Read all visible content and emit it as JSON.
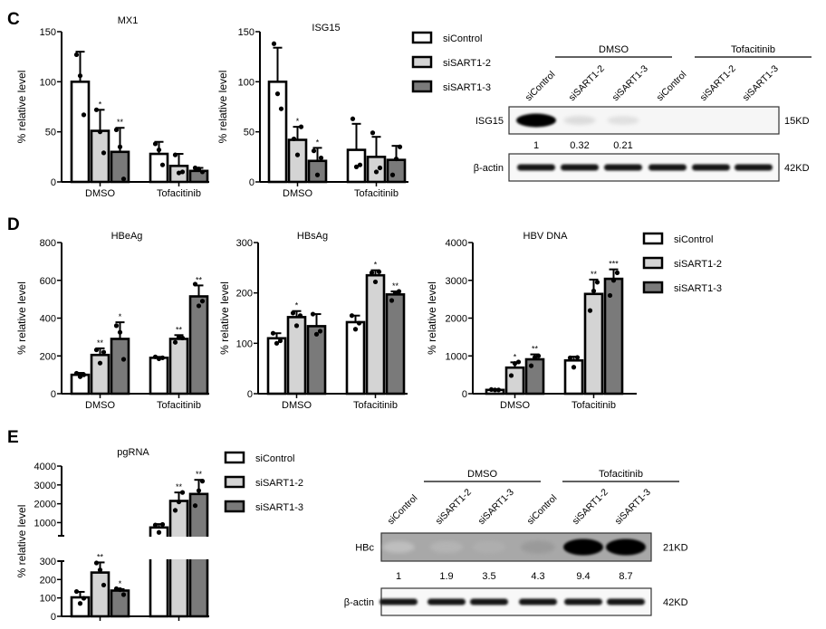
{
  "panels": {
    "C": "C",
    "D": "D",
    "E": "E"
  },
  "colors": {
    "siControl": "#ffffff",
    "siSART1-2": "#d4d4d4",
    "siSART1-3": "#7a7a7a",
    "stroke": "#000000"
  },
  "legend": [
    "siControl",
    "siSART1-2",
    "siSART1-3"
  ],
  "blots": [
    {
      "panel": "C",
      "groups": [
        "DMSO",
        "Tofacitinib"
      ],
      "lanes": [
        "siControl",
        "siSART1-2",
        "siSART1-3",
        "siControl",
        "siSART1-2",
        "siSART1-3"
      ],
      "target": {
        "label": "ISG15",
        "size": "15KD",
        "intensity": [
          1.0,
          0.12,
          0.1,
          0.0,
          0.0,
          0.0
        ]
      },
      "quant": [
        "1",
        "0.32",
        "0.21",
        "",
        "",
        ""
      ],
      "loading": {
        "label": "β-actin",
        "size": "42KD"
      }
    },
    {
      "panel": "E",
      "groups": [
        "DMSO",
        "Tofacitinib"
      ],
      "lanes": [
        "siControl",
        "siSART1-2",
        "siSART1-3",
        "siControl",
        "siSART1-2",
        "siSART1-3"
      ],
      "target": {
        "label": "HBc",
        "size": "21KD",
        "intensity": [
          0.15,
          0.22,
          0.25,
          0.35,
          1.0,
          1.0
        ]
      },
      "quant": [
        "1",
        "1.9",
        "3.5",
        "4.3",
        "9.4",
        "8.7"
      ],
      "loading": {
        "label": "β-actin",
        "size": "42KD"
      }
    }
  ],
  "chart_data": [
    {
      "type": "bar",
      "panel": "C",
      "title": "MX1",
      "ylabel": "% relative level",
      "categories": [
        "DMSO",
        "Tofacitinib"
      ],
      "ylim": [
        0,
        150
      ],
      "yticks": [
        "0",
        "50",
        "100",
        "150"
      ],
      "series": [
        {
          "name": "siControl",
          "values": [
            100,
            28
          ],
          "err": [
            30,
            12
          ],
          "points": [
            [
              127,
              106,
              67
            ],
            [
              38,
              32,
              17
            ]
          ],
          "sig": [
            "",
            ""
          ]
        },
        {
          "name": "siSART1-2",
          "values": [
            51,
            16
          ],
          "err": [
            21,
            12
          ],
          "points": [
            [
              72,
              50,
              29
            ],
            [
              27,
              9,
              10
            ]
          ],
          "sig": [
            "*",
            ""
          ]
        },
        {
          "name": "siSART1-3",
          "values": [
            30,
            11
          ],
          "err": [
            24,
            3
          ],
          "points": [
            [
              52,
              35,
              3
            ],
            [
              14,
              13,
              10
            ]
          ],
          "sig": [
            "**",
            ""
          ]
        }
      ]
    },
    {
      "type": "bar",
      "panel": "C",
      "title": "ISG15",
      "ylabel": "% relative level",
      "categories": [
        "DMSO",
        "Tofacitinib"
      ],
      "ylim": [
        0,
        150
      ],
      "yticks": [
        "0",
        "50",
        "100",
        "150"
      ],
      "series": [
        {
          "name": "siControl",
          "values": [
            100,
            32
          ],
          "err": [
            34,
            26
          ],
          "points": [
            [
              138,
              88,
              73
            ],
            [
              63,
              15,
              17
            ]
          ],
          "sig": [
            "",
            ""
          ]
        },
        {
          "name": "siSART1-2",
          "values": [
            42,
            25
          ],
          "err": [
            13,
            20
          ],
          "points": [
            [
              43,
              27,
              55
            ],
            [
              49,
              10,
              14
            ]
          ],
          "sig": [
            "*",
            ""
          ]
        },
        {
          "name": "siSART1-3",
          "values": [
            21,
            22
          ],
          "err": [
            13,
            14
          ],
          "points": [
            [
              31,
              7,
              24
            ],
            [
              7,
              23,
              35
            ]
          ],
          "sig": [
            "*",
            ""
          ]
        }
      ]
    },
    {
      "type": "bar",
      "panel": "D",
      "title": "HBeAg",
      "ylabel": "% relative level",
      "categories": [
        "DMSO",
        "Tofacitinib"
      ],
      "ylim": [
        0,
        800
      ],
      "yticks": [
        "0",
        "200",
        "400",
        "600",
        "800"
      ],
      "series": [
        {
          "name": "siControl",
          "values": [
            100,
            190
          ],
          "err": [
            10,
            5
          ],
          "points": [
            [
              108,
              90,
              100
            ],
            [
              195,
              185,
              190
            ]
          ],
          "sig": [
            "",
            ""
          ]
        },
        {
          "name": "siSART1-2",
          "values": [
            205,
            290
          ],
          "err": [
            35,
            20
          ],
          "points": [
            [
              232,
              162,
              220
            ],
            [
              272,
              300,
              295
            ]
          ],
          "sig": [
            "**",
            "**"
          ]
        },
        {
          "name": "siSART1-3",
          "values": [
            290,
            515
          ],
          "err": [
            88,
            58
          ],
          "points": [
            [
              360,
              325,
              182
            ],
            [
              580,
              465,
              490
            ]
          ],
          "sig": [
            "*",
            "**"
          ]
        }
      ]
    },
    {
      "type": "bar",
      "panel": "D",
      "title": "HBsAg",
      "ylabel": "% relative level",
      "categories": [
        "DMSO",
        "Tofacitinib"
      ],
      "ylim": [
        0,
        300
      ],
      "yticks": [
        "0",
        "100",
        "200",
        "300"
      ],
      "series": [
        {
          "name": "siControl",
          "values": [
            110,
            142
          ],
          "err": [
            10,
            13
          ],
          "points": [
            [
              120,
              100,
              105
            ],
            [
              155,
              128,
              140
            ]
          ],
          "sig": [
            "",
            ""
          ]
        },
        {
          "name": "siSART1-2",
          "values": [
            152,
            235
          ],
          "err": [
            12,
            10
          ],
          "points": [
            [
              160,
              135,
              155
            ],
            [
              240,
              222,
              242
            ]
          ],
          "sig": [
            "*",
            "*"
          ]
        },
        {
          "name": "siSART1-3",
          "values": [
            134,
            197
          ],
          "err": [
            24,
            6
          ],
          "points": [
            [
              158,
              118,
              124
            ],
            [
              185,
              200,
              203
            ]
          ],
          "sig": [
            "",
            "**"
          ]
        }
      ]
    },
    {
      "type": "bar",
      "panel": "D",
      "title": "HBV DNA",
      "ylabel": "% relative level",
      "categories": [
        "DMSO",
        "Tofacitinib"
      ],
      "ylim": [
        0,
        4000
      ],
      "yticks": [
        "0",
        "1000",
        "2000",
        "3000",
        "4000"
      ],
      "series": [
        {
          "name": "siControl",
          "values": [
            100,
            880
          ],
          "err": [
            20,
            100
          ],
          "points": [
            [
              110,
              100,
              100
            ],
            [
              950,
              700,
              960
            ]
          ],
          "sig": [
            "",
            ""
          ]
        },
        {
          "name": "siSART1-2",
          "values": [
            690,
            2640
          ],
          "err": [
            140,
            380
          ],
          "points": [
            [
              480,
              800,
              840
            ],
            [
              2200,
              2720,
              2950
            ]
          ],
          "sig": [
            "*",
            "**"
          ]
        },
        {
          "name": "siSART1-3",
          "values": [
            910,
            3040
          ],
          "err": [
            130,
            250
          ],
          "points": [
            [
              740,
              960,
              1000
            ],
            [
              2600,
              3000,
              3200
            ]
          ],
          "sig": [
            "**",
            "***"
          ]
        }
      ]
    },
    {
      "type": "bar",
      "panel": "E",
      "title": "pgRNA",
      "ylabel": "% relative level",
      "categories": [
        "",
        ""
      ],
      "axis_break": [
        300,
        500
      ],
      "ylim": [
        0,
        4000
      ],
      "yticks": [
        "0",
        "100",
        "200",
        "300",
        "1000",
        "2000",
        "3000",
        "4000"
      ],
      "series": [
        {
          "name": "siControl",
          "values": [
            103,
            740
          ],
          "err": [
            30,
            180
          ],
          "points": [
            [
              135,
              70,
              98
            ],
            [
              870,
              480,
              900
            ]
          ],
          "sig": [
            "",
            ""
          ]
        },
        {
          "name": "siSART1-2",
          "values": [
            238,
            2150
          ],
          "err": [
            55,
            450
          ],
          "points": [
            [
              290,
              252,
              170
            ],
            [
              1650,
              2100,
              2600
            ]
          ],
          "sig": [
            "**",
            "**"
          ]
        },
        {
          "name": "siSART1-3",
          "values": [
            140,
            2520
          ],
          "err": [
            8,
            750
          ],
          "points": [
            [
              150,
              145,
              118
            ],
            [
              1900,
              2700,
              3200
            ]
          ],
          "sig": [
            "*",
            "**"
          ]
        }
      ]
    }
  ]
}
